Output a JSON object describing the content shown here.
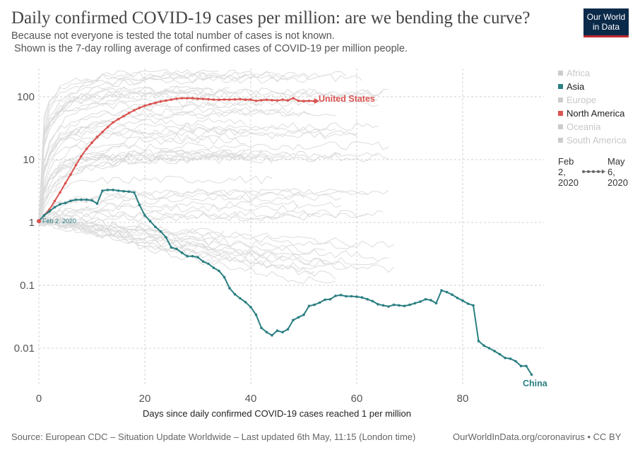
{
  "header": {
    "title": "Daily confirmed COVID-19 cases per million: are we bending the curve?",
    "subtitle_line1": "Because not everyone is tested the total number of cases is not known.",
    "subtitle_line2": " Shown is the 7-day rolling average of confirmed cases of COVID-19 per million people.",
    "logo_line1": "Our World",
    "logo_line2": "in Data"
  },
  "footer": {
    "source": "Source: European CDC – Situation Update Worldwide – Last updated 6th May, 11:15 (London time)",
    "link": "OurWorldInData.org/coronavirus • CC BY"
  },
  "legend": {
    "items": [
      {
        "label": "Africa",
        "color": "#cccccc",
        "active": false
      },
      {
        "label": "Asia",
        "color": "#2b7f82",
        "active": true
      },
      {
        "label": "Europe",
        "color": "#cccccc",
        "active": false
      },
      {
        "label": "North America",
        "color": "#d9534f",
        "active": true
      },
      {
        "label": "Oceania",
        "color": "#cccccc",
        "active": false
      },
      {
        "label": "South America",
        "color": "#cccccc",
        "active": false
      }
    ],
    "timeline": {
      "start_line1": "Feb",
      "start_line2": "2,",
      "start_line3": "2020",
      "end_line1": "May",
      "end_line2": "6,",
      "end_line3": "2020"
    }
  },
  "chart_data": {
    "type": "line",
    "xlabel": "Days since daily confirmed COVID-19 cases reached 1 per million",
    "ylabel": "",
    "xlim": [
      0,
      93
    ],
    "ylim": [
      0.003,
      250
    ],
    "yscale": "log",
    "x_ticks": [
      0,
      20,
      40,
      60,
      80
    ],
    "y_ticks": [
      0.01,
      0.1,
      1,
      10,
      100
    ],
    "y_tick_labels": [
      "0.01",
      "0.1",
      "1",
      "10",
      "100"
    ],
    "start_annotation": "Feb 2, 2020",
    "series": [
      {
        "name": "United States",
        "color": "#d9534f",
        "x": [
          0,
          1,
          2,
          3,
          4,
          5,
          6,
          7,
          8,
          9,
          10,
          11,
          12,
          13,
          14,
          15,
          16,
          17,
          18,
          19,
          20,
          21,
          22,
          23,
          24,
          25,
          26,
          27,
          28,
          29,
          30,
          31,
          32,
          33,
          34,
          35,
          36,
          37,
          38,
          39,
          40,
          41,
          42,
          43,
          44,
          45,
          46,
          47,
          48,
          49,
          50,
          51,
          52
        ],
        "y": [
          1.05,
          1.3,
          1.6,
          2.2,
          3.0,
          4.2,
          5.8,
          8.2,
          11.3,
          14.8,
          18.5,
          22.8,
          27.5,
          33,
          39,
          44,
          49,
          55,
          61,
          66.5,
          72,
          76,
          80,
          84,
          87,
          90,
          93,
          95,
          94.8,
          95,
          93,
          92.5,
          91,
          90,
          89.5,
          90.5,
          90.2,
          90.6,
          91.5,
          89.8,
          90,
          86,
          88,
          89.5,
          88,
          87,
          90,
          87.5,
          95,
          86,
          85.5,
          86,
          85.5
        ]
      },
      {
        "name": "China",
        "color": "#2b7f82",
        "x": [
          0,
          1,
          2,
          3,
          4,
          5,
          6,
          7,
          8,
          9,
          10,
          11,
          12,
          13,
          14,
          15,
          16,
          17,
          18,
          19,
          20,
          21,
          22,
          23,
          24,
          25,
          26,
          27,
          28,
          29,
          30,
          31,
          32,
          33,
          34,
          35,
          36,
          37,
          38,
          39,
          40,
          41,
          42,
          43,
          44,
          45,
          46,
          47,
          48,
          49,
          50,
          51,
          52,
          53,
          54,
          55,
          56,
          57,
          58,
          59,
          60,
          61,
          62,
          63,
          64,
          65,
          66,
          67,
          68,
          69,
          70,
          71,
          72,
          73,
          74,
          75,
          76,
          77,
          78,
          79,
          80,
          81,
          82,
          83,
          84,
          85,
          86,
          87,
          88,
          89,
          90,
          91,
          92,
          93
        ],
        "y": [
          1.05,
          1.3,
          1.5,
          1.75,
          1.95,
          2.05,
          2.2,
          2.3,
          2.3,
          2.3,
          2.25,
          2.0,
          3.2,
          3.3,
          3.3,
          3.2,
          3.15,
          3.1,
          3.0,
          1.9,
          1.3,
          1.05,
          0.85,
          0.72,
          0.58,
          0.4,
          0.38,
          0.33,
          0.29,
          0.29,
          0.28,
          0.24,
          0.22,
          0.19,
          0.17,
          0.135,
          0.09,
          0.072,
          0.062,
          0.054,
          0.045,
          0.034,
          0.021,
          0.018,
          0.016,
          0.019,
          0.018,
          0.02,
          0.028,
          0.031,
          0.034,
          0.047,
          0.049,
          0.053,
          0.059,
          0.06,
          0.068,
          0.07,
          0.067,
          0.067,
          0.066,
          0.064,
          0.06,
          0.056,
          0.05,
          0.048,
          0.046,
          0.049,
          0.048,
          0.047,
          0.049,
          0.052,
          0.055,
          0.06,
          0.058,
          0.052,
          0.083,
          0.078,
          0.071,
          0.063,
          0.057,
          0.051,
          0.048,
          0.013,
          0.011,
          0.01,
          0.009,
          0.008,
          0.007,
          0.0068,
          0.0062,
          0.0052,
          0.0052,
          0.0038
        ]
      }
    ],
    "end_labels": [
      "United States",
      "China"
    ]
  }
}
